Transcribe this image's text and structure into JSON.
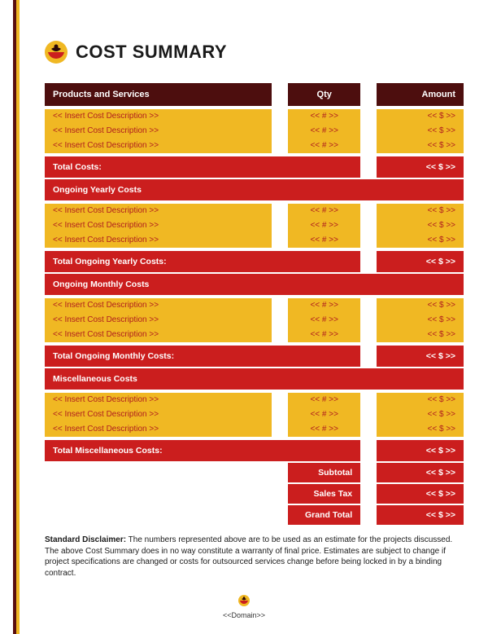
{
  "colors": {
    "header_bg": "#4d0e0e",
    "row_red": "#cb1e1e",
    "row_gold": "#f0b823",
    "item_text": "#b01e1e",
    "white": "#ffffff",
    "stripe_red": "#5a0e0e",
    "stripe_gold": "#f0b823"
  },
  "title": "COST SUMMARY",
  "columns": {
    "desc": "Products and Services",
    "qty": "Qty",
    "amount": "Amount"
  },
  "sections": [
    {
      "heading": null,
      "items": [
        {
          "desc": "<< Insert Cost Description >>",
          "qty": "<< # >>",
          "amount": "<< $ >>"
        },
        {
          "desc": "<< Insert Cost Description >>",
          "qty": "<< # >>",
          "amount": "<< $ >>"
        },
        {
          "desc": "<< Insert Cost Description >>",
          "qty": "<< # >>",
          "amount": "<< $ >>"
        }
      ],
      "total_label": "Total Costs:",
      "total_amount": "<< $ >>"
    },
    {
      "heading": "Ongoing Yearly Costs",
      "items": [
        {
          "desc": "<< Insert Cost Description >>",
          "qty": "<< # >>",
          "amount": "<< $ >>"
        },
        {
          "desc": "<< Insert Cost Description >>",
          "qty": "<< # >>",
          "amount": "<< $ >>"
        },
        {
          "desc": "<< Insert Cost Description >>",
          "qty": "<< # >>",
          "amount": "<< $ >>"
        }
      ],
      "total_label": "Total Ongoing Yearly Costs:",
      "total_amount": "<< $ >>"
    },
    {
      "heading": "Ongoing Monthly Costs",
      "items": [
        {
          "desc": "<< Insert Cost Description >>",
          "qty": "<< # >>",
          "amount": "<< $ >>"
        },
        {
          "desc": "<< Insert Cost Description >>",
          "qty": "<< # >>",
          "amount": "<< $ >>"
        },
        {
          "desc": "<< Insert Cost Description >>",
          "qty": "<< # >>",
          "amount": "<< $ >>"
        }
      ],
      "total_label": "Total Ongoing Monthly Costs:",
      "total_amount": "<< $ >>"
    },
    {
      "heading": "Miscellaneous Costs",
      "items": [
        {
          "desc": "<< Insert Cost Description >>",
          "qty": "<< # >>",
          "amount": "<< $ >>"
        },
        {
          "desc": "<< Insert Cost Description >>",
          "qty": "<< # >>",
          "amount": "<< $ >>"
        },
        {
          "desc": "<< Insert Cost Description >>",
          "qty": "<< # >>",
          "amount": "<< $ >>"
        }
      ],
      "total_label": "Total Miscellaneous Costs:",
      "total_amount": "<< $ >>"
    }
  ],
  "summary": [
    {
      "label": "Subtotal",
      "amount": "<< $ >>"
    },
    {
      "label": "Sales Tax",
      "amount": "<< $ >>"
    },
    {
      "label": "Grand Total",
      "amount": "<< $ >>"
    }
  ],
  "disclaimer": {
    "label": "Standard Disclaimer:",
    "text": " The numbers represented above are to be used as an estimate for the projects discussed. The above Cost Summary does in no way constitute a warranty of final price.  Estimates are subject to change if project specifications are changed or costs for outsourced services change before being locked in by a binding contract."
  },
  "footer": "<<Domain>>"
}
